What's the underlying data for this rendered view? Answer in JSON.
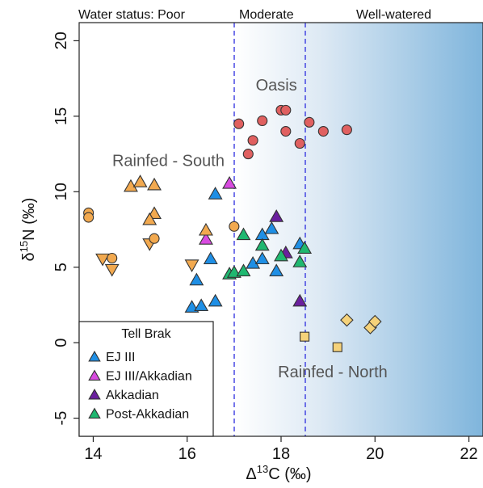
{
  "chart_data": {
    "type": "scatter",
    "xlabel": "Δ13C (‰)",
    "ylabel": "δ15N (‰)",
    "xlim": [
      13.7,
      22.3
    ],
    "ylim": [
      -6.2,
      21.2
    ],
    "xticks": [
      "14",
      "16",
      "18",
      "20",
      "22"
    ],
    "yticks": [
      "-5",
      "0",
      "5",
      "10",
      "15",
      "20"
    ],
    "xtick_values": [
      14,
      16,
      18,
      20,
      22
    ],
    "ytick_values": [
      -5,
      0,
      5,
      10,
      15,
      20
    ],
    "water_status": {
      "label": "Water status: Poor",
      "moderate": "Moderate",
      "well_watered": "Well-watered",
      "boundaries": [
        17.0,
        18.5
      ]
    },
    "annotations": [
      {
        "text": "Oasis",
        "x": 17.9,
        "y": 16.7
      },
      {
        "text": "Rainfed - South",
        "x": 15.6,
        "y": 11.7
      },
      {
        "text": "Rainfed - North",
        "x": 19.1,
        "y": -2.3
      }
    ],
    "legend": {
      "title": "Tell Brak",
      "position": "bottom-left",
      "items": [
        {
          "label": "EJ III",
          "color": "#1f8fe5",
          "marker": "triangle-up"
        },
        {
          "label": "EJ III/Akkadian",
          "color": "#d84be0",
          "marker": "triangle-up"
        },
        {
          "label": "Akkadian",
          "color": "#6a1f9e",
          "marker": "triangle-up"
        },
        {
          "label": "Post-Akkadian",
          "color": "#1fb870",
          "marker": "triangle-up"
        }
      ]
    },
    "series": [
      {
        "name": "EJ III",
        "marker": "triangle-up",
        "color": "#1f8fe5",
        "points": [
          [
            16.1,
            2.4
          ],
          [
            16.3,
            2.5
          ],
          [
            16.6,
            2.8
          ],
          [
            16.2,
            4.2
          ],
          [
            16.5,
            5.6
          ],
          [
            16.6,
            9.9
          ],
          [
            17.4,
            5.3
          ],
          [
            17.6,
            5.6
          ],
          [
            17.6,
            7.2
          ],
          [
            17.8,
            7.6
          ],
          [
            17.9,
            4.8
          ],
          [
            18.4,
            6.6
          ]
        ]
      },
      {
        "name": "EJ III/Akkadian",
        "marker": "triangle-up",
        "color": "#d84be0",
        "points": [
          [
            16.4,
            6.9
          ],
          [
            16.9,
            10.6
          ]
        ]
      },
      {
        "name": "Akkadian",
        "marker": "triangle-up",
        "color": "#6a1f9e",
        "points": [
          [
            17.9,
            8.4
          ],
          [
            18.1,
            6.0
          ],
          [
            18.4,
            2.8
          ]
        ]
      },
      {
        "name": "Post-Akkadian",
        "marker": "triangle-up",
        "color": "#1fb870",
        "points": [
          [
            16.9,
            4.6
          ],
          [
            17.0,
            4.7
          ],
          [
            17.2,
            7.2
          ],
          [
            17.2,
            4.8
          ],
          [
            17.6,
            6.5
          ],
          [
            18.0,
            5.8
          ],
          [
            18.4,
            5.4
          ],
          [
            18.5,
            6.3
          ]
        ]
      },
      {
        "name": "",
        "marker": "circle",
        "color": "#e06060",
        "points": [
          [
            17.1,
            14.5
          ],
          [
            17.3,
            12.5
          ],
          [
            17.4,
            13.4
          ],
          [
            17.6,
            14.7
          ],
          [
            18.0,
            15.4
          ],
          [
            18.1,
            15.4
          ],
          [
            18.1,
            14.0
          ],
          [
            18.4,
            13.2
          ],
          [
            18.6,
            14.6
          ],
          [
            18.9,
            14.0
          ],
          [
            19.4,
            14.1
          ]
        ]
      },
      {
        "name": "",
        "marker": "triangle-up",
        "color": "#f2a94f",
        "points": [
          [
            14.8,
            10.4
          ],
          [
            15.0,
            10.7
          ],
          [
            15.3,
            10.5
          ],
          [
            15.3,
            8.6
          ],
          [
            15.2,
            8.2
          ],
          [
            16.4,
            7.5
          ]
        ]
      },
      {
        "name": "",
        "marker": "triangle-down",
        "color": "#f2a94f",
        "points": [
          [
            14.2,
            5.5
          ],
          [
            14.4,
            4.8
          ],
          [
            15.2,
            6.5
          ],
          [
            16.1,
            5.1
          ]
        ]
      },
      {
        "name": "",
        "marker": "circle",
        "color": "#f2a94f",
        "points": [
          [
            13.9,
            8.6
          ],
          [
            13.9,
            8.3
          ],
          [
            14.4,
            5.6
          ],
          [
            15.3,
            6.9
          ],
          [
            17.0,
            7.7
          ]
        ]
      },
      {
        "name": "",
        "marker": "square",
        "color": "#f5d27a",
        "points": [
          [
            18.5,
            0.4
          ],
          [
            19.2,
            -0.3
          ]
        ]
      },
      {
        "name": "",
        "marker": "diamond",
        "color": "#f5d27a",
        "points": [
          [
            19.4,
            1.5
          ],
          [
            19.9,
            1.0
          ],
          [
            20.0,
            1.4
          ]
        ]
      }
    ],
    "grid": false
  }
}
